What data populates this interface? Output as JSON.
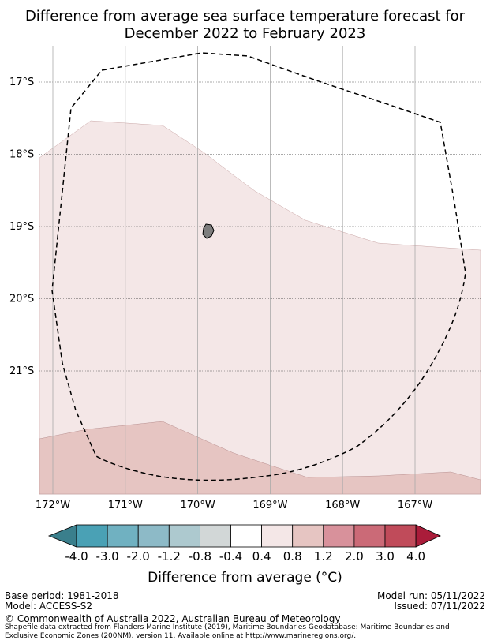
{
  "title_line1": "Difference from average sea surface temperature forecast for",
  "title_line2": "December 2022 to February 2023",
  "lat_ticks": [
    {
      "value": -17,
      "label": "17°S"
    },
    {
      "value": -18,
      "label": "18°S"
    },
    {
      "value": -19,
      "label": "19°S"
    },
    {
      "value": -20,
      "label": "20°S"
    },
    {
      "value": -21,
      "label": "21°S"
    }
  ],
  "lon_ticks": [
    {
      "value": -172,
      "label": "172°W"
    },
    {
      "value": -171,
      "label": "171°W"
    },
    {
      "value": -170,
      "label": "170°W"
    },
    {
      "value": -169,
      "label": "169°W"
    },
    {
      "value": -168,
      "label": "168°W"
    },
    {
      "value": -167,
      "label": "167°W"
    }
  ],
  "colorbar": {
    "labels": [
      "-4.0",
      "-3.0",
      "-2.0",
      "-1.2",
      "-0.8",
      "-0.4",
      "0.4",
      "0.8",
      "1.2",
      "2.0",
      "3.0",
      "4.0"
    ],
    "colors": [
      "#3a7f8c",
      "#4aa1b5",
      "#70b1c1",
      "#8dbac7",
      "#adc9cf",
      "#d2d7d7",
      "#ffffff",
      "#f4e7e7",
      "#e6c5c2",
      "#d8919b",
      "#cb6a77",
      "#c04b5a",
      "#aa1c3a"
    ],
    "title": "Difference from average (°C)"
  },
  "map": {
    "fill_light": "#f4e7e7",
    "fill_medium": "#e6c5c2",
    "island_color": "#7d7d7d",
    "eez_line": "dashed black"
  },
  "footer": {
    "base_period": "Base period: 1981-2018",
    "model": "Model: ACCESS-S2",
    "model_run": "Model run: 05/11/2022",
    "issued": "Issued: 07/11/2022",
    "copyright": "© Commonwealth of Australia 2022, Australian Bureau of Meteorology",
    "shapefile_line1": "Shapefile data extracted from Flanders Marine Institute (2019), Maritime Boundaries Geodatabase: Maritime Boundaries and",
    "shapefile_line2": "Exclusive Economic Zones (200NM), version 11. Available online at http://www.marineregions.org/."
  }
}
